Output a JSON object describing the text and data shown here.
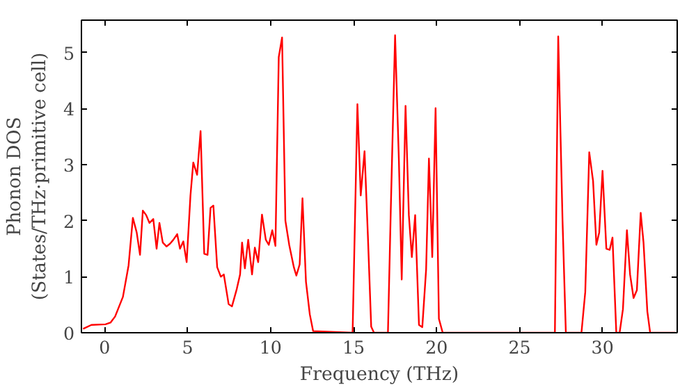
{
  "chart_data": {
    "type": "line",
    "xlabel": "Frequency (THz)",
    "ylabel": "Phonon DOS\n(States/THz·primitive cell)",
    "xlim": [
      -1.4,
      34.5
    ],
    "ylim": [
      0,
      5.58
    ],
    "xticks": [
      0,
      5,
      10,
      15,
      20,
      25,
      30
    ],
    "yticks": [
      0,
      1,
      2,
      3,
      4,
      5
    ],
    "grid": false,
    "marker": "none",
    "line_style": "solid",
    "series": [
      {
        "color": "#ff0000",
        "x": [
          -1.3,
          -0.8,
          0.05,
          0.35,
          0.63,
          1.1,
          1.44,
          1.7,
          1.93,
          2.13,
          2.3,
          2.5,
          2.7,
          2.93,
          3.13,
          3.3,
          3.5,
          3.73,
          3.94,
          4.14,
          4.37,
          4.54,
          4.74,
          4.94,
          5.17,
          5.34,
          5.57,
          5.78,
          6.0,
          6.2,
          6.38,
          6.55,
          6.78,
          7.0,
          7.18,
          7.47,
          7.67,
          7.96,
          8.16,
          8.28,
          8.45,
          8.65,
          8.88,
          9.05,
          9.25,
          9.48,
          9.71,
          9.89,
          10.1,
          10.29,
          10.49,
          10.69,
          10.89,
          11.12,
          11.4,
          11.55,
          11.75,
          11.92,
          12.13,
          12.36,
          12.56,
          14.94,
          15.23,
          15.43,
          15.66,
          15.86,
          16.06,
          16.23,
          17.07,
          17.24,
          17.5,
          17.73,
          17.9,
          18.13,
          18.33,
          18.51,
          18.71,
          18.94,
          19.14,
          19.37,
          19.54,
          19.74,
          19.94,
          20.14,
          20.37,
          27.13,
          27.33,
          27.59,
          27.79,
          28.73,
          28.96,
          29.2,
          29.43,
          29.63,
          29.8,
          30.0,
          30.23,
          30.43,
          30.6,
          30.83,
          31.03,
          31.23,
          31.47,
          31.66,
          31.87,
          32.07,
          32.3,
          32.47,
          32.7,
          32.87,
          34.4
        ],
        "values": [
          0.07,
          0.14,
          0.15,
          0.18,
          0.29,
          0.64,
          1.2,
          2.05,
          1.79,
          1.39,
          2.18,
          2.1,
          1.96,
          2.03,
          1.5,
          1.96,
          1.61,
          1.54,
          1.59,
          1.66,
          1.76,
          1.5,
          1.63,
          1.26,
          2.45,
          3.04,
          2.82,
          3.6,
          1.41,
          1.39,
          2.23,
          2.27,
          1.17,
          1.0,
          1.04,
          0.51,
          0.47,
          0.78,
          1.04,
          1.61,
          1.15,
          1.66,
          1.04,
          1.52,
          1.26,
          2.11,
          1.66,
          1.57,
          1.83,
          1.55,
          4.92,
          5.27,
          2.0,
          1.57,
          1.17,
          1.02,
          1.22,
          2.4,
          0.91,
          0.33,
          0.03,
          0,
          4.08,
          2.45,
          3.24,
          1.74,
          0.11,
          0,
          0,
          2.18,
          5.31,
          3.07,
          0.95,
          4.05,
          2.1,
          1.35,
          2.1,
          0.14,
          0.1,
          1.13,
          3.11,
          1.35,
          4.01,
          0.25,
          0,
          0,
          5.29,
          2.0,
          0,
          0,
          0.73,
          3.22,
          2.71,
          1.57,
          1.79,
          2.89,
          1.5,
          1.48,
          1.7,
          0,
          0,
          0.42,
          1.83,
          1.04,
          0.62,
          0.76,
          2.14,
          1.61,
          0.38,
          0,
          0
        ]
      }
    ]
  }
}
